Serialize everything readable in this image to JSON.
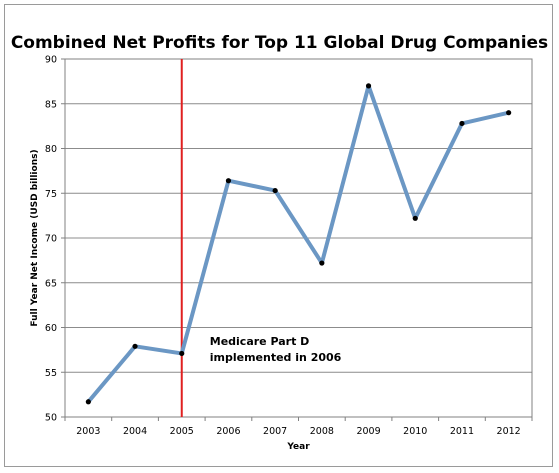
{
  "chart_data": {
    "type": "line",
    "title": "Combined Net Profits for Top 11 Global Drug Companies",
    "xlabel": "Year",
    "ylabel": "Full Year Net Income (USD billions)",
    "x": [
      "2003",
      "2004",
      "2005",
      "2006",
      "2007",
      "2008",
      "2009",
      "2010",
      "2011",
      "2012"
    ],
    "series": [
      {
        "values": [
          51.7,
          57.9,
          57.1,
          76.4,
          75.3,
          67.2,
          87.0,
          72.2,
          82.8,
          84.0
        ]
      }
    ],
    "ylim": [
      50,
      90
    ],
    "yticks": [
      50,
      55,
      60,
      65,
      70,
      75,
      80,
      85,
      90
    ],
    "grid": true,
    "legend": "none",
    "line_color": "#6b97c4",
    "marker_color": "#000000",
    "vline": {
      "x": "2005",
      "color": "#e02020"
    },
    "annotation": {
      "lines": [
        "Medicare Part D",
        "implemented in 2006"
      ]
    }
  }
}
